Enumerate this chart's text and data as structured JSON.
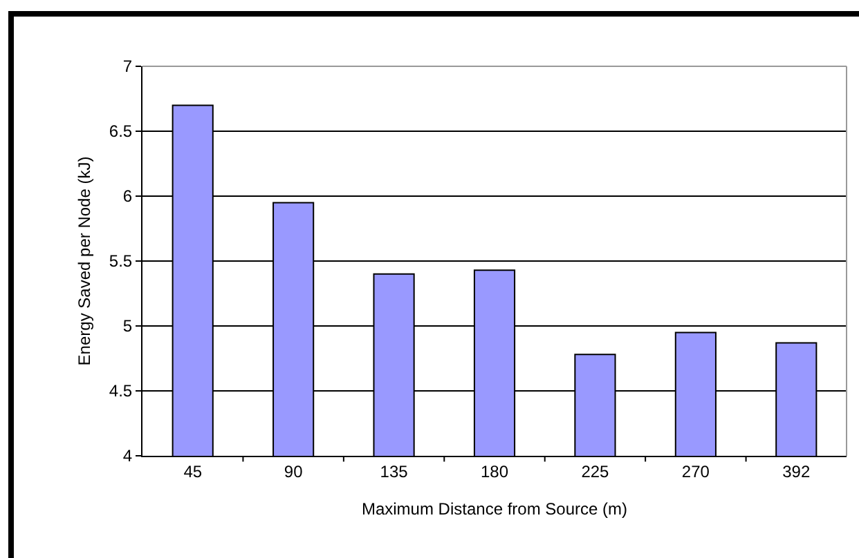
{
  "chart_data": {
    "type": "bar",
    "xlabel": "Maximum Distance from Source (m)",
    "ylabel": "Energy Saved per Node (kJ)",
    "categories": [
      "45",
      "90",
      "135",
      "180",
      "225",
      "270",
      "392"
    ],
    "values": [
      6.7,
      5.95,
      5.4,
      5.43,
      4.78,
      4.95,
      4.87
    ],
    "color": "#9999ff",
    "ylim": [
      4,
      7
    ],
    "yticks": [
      4,
      4.5,
      5,
      5.5,
      6,
      6.5,
      7
    ],
    "grid": "y"
  }
}
